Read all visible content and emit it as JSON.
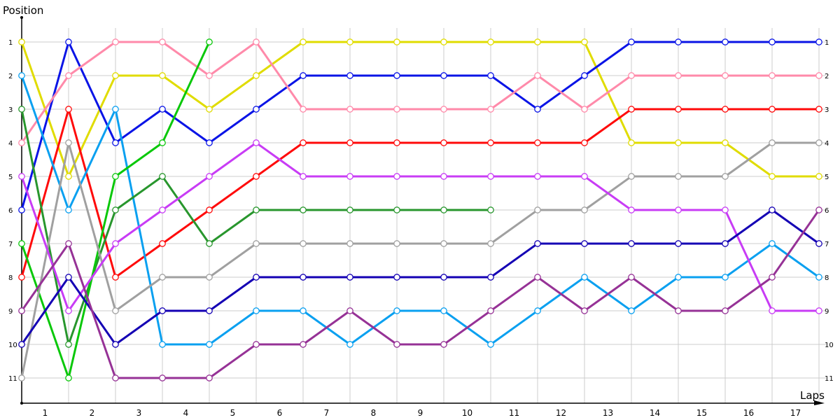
{
  "chart_data": {
    "type": "line",
    "title": "",
    "xlabel": "Laps",
    "ylabel": "Position",
    "x": [
      0,
      1,
      2,
      3,
      4,
      5,
      6,
      7,
      8,
      9,
      10,
      11,
      12,
      13,
      14,
      15,
      16,
      17
    ],
    "x_tick_labels": [
      "1",
      "2",
      "3",
      "4",
      "5",
      "6",
      "7",
      "8",
      "9",
      "10",
      "11",
      "12",
      "13",
      "14",
      "15",
      "16",
      "17"
    ],
    "y_tick_labels": [
      "1",
      "2",
      "3",
      "4",
      "5",
      "6",
      "7",
      "8",
      "9",
      "10",
      "11"
    ],
    "ylim": [
      11,
      1
    ],
    "y_inverted": true,
    "grid": true,
    "legend": "none",
    "series": [
      {
        "name": "yellow",
        "color": "#e0dc00",
        "values": [
          1,
          5,
          2,
          2,
          3,
          2,
          1,
          1,
          1,
          1,
          1,
          1,
          1,
          4,
          4,
          4,
          5,
          5
        ]
      },
      {
        "name": "blue",
        "color": "#0a14e6",
        "values": [
          6,
          1,
          4,
          3,
          4,
          3,
          2,
          2,
          2,
          2,
          2,
          3,
          2,
          1,
          1,
          1,
          1,
          1
        ]
      },
      {
        "name": "pink",
        "color": "#ff8aaa",
        "values": [
          4,
          2,
          1,
          1,
          2,
          1,
          3,
          3,
          3,
          3,
          3,
          2,
          3,
          2,
          2,
          2,
          2,
          2
        ]
      },
      {
        "name": "red",
        "color": "#ff0a0a",
        "values": [
          8,
          3,
          8,
          7,
          6,
          5,
          4,
          4,
          4,
          4,
          4,
          4,
          4,
          3,
          3,
          3,
          3,
          3
        ]
      },
      {
        "name": "light-blue",
        "color": "#0aa0f0",
        "values": [
          2,
          6,
          3,
          10,
          10,
          9,
          9,
          10,
          9,
          9,
          10,
          9,
          8,
          9,
          8,
          8,
          7,
          8
        ]
      },
      {
        "name": "dark-green",
        "color": "#28962d",
        "values": [
          3,
          10,
          6,
          5,
          7,
          6,
          6,
          6,
          6,
          6,
          6
        ]
      },
      {
        "name": "bright-green",
        "color": "#0ac80a",
        "values": [
          7,
          11,
          5,
          4,
          1
        ]
      },
      {
        "name": "gray",
        "color": "#a0a0a0",
        "values": [
          11,
          4,
          9,
          8,
          8,
          7,
          7,
          7,
          7,
          7,
          7,
          6,
          6,
          5,
          5,
          5,
          4,
          4
        ]
      },
      {
        "name": "magenta",
        "color": "#c83cf5",
        "values": [
          5,
          9,
          7,
          6,
          5,
          4,
          5,
          5,
          5,
          5,
          5,
          5,
          5,
          6,
          6,
          6,
          9,
          9
        ]
      },
      {
        "name": "navy",
        "color": "#1400b4",
        "values": [
          10,
          8,
          10,
          9,
          9,
          8,
          8,
          8,
          8,
          8,
          8,
          7,
          7,
          7,
          7,
          7,
          6,
          7
        ]
      },
      {
        "name": "purple",
        "color": "#963296",
        "values": [
          9,
          7,
          11,
          11,
          11,
          10,
          10,
          9,
          10,
          10,
          9,
          8,
          9,
          8,
          9,
          9,
          8,
          6
        ]
      }
    ]
  },
  "axes": {
    "y_title": "Position",
    "x_title": "Laps"
  }
}
